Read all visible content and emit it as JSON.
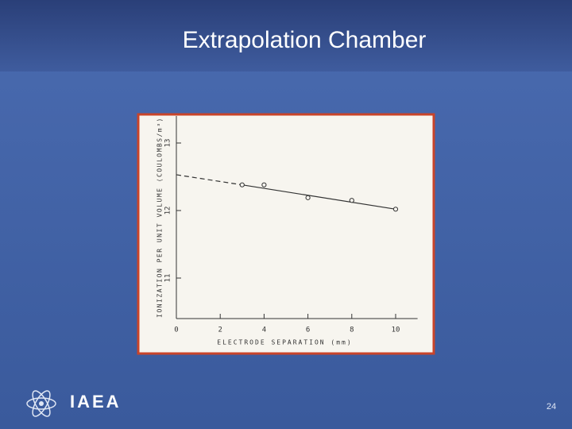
{
  "slide": {
    "title": "Extrapolation Chamber",
    "logo": "IAEA",
    "page": "24"
  },
  "chart_data": {
    "type": "scatter",
    "x_label": "ELECTRODE SEPARATION (mm)",
    "y_label": "IONIZATION PER UNIT VOLUME (COULOMBS/m³)",
    "x": [
      3,
      4,
      6,
      8,
      10
    ],
    "values": [
      12.38,
      12.38,
      12.19,
      12.15,
      12.02
    ],
    "fit_x": [
      0,
      3,
      10
    ],
    "fit_values": [
      12.53,
      12.38,
      12.02
    ],
    "color": "#333333",
    "xlim": [
      0,
      11
    ],
    "ylim": [
      10.4,
      13.4
    ],
    "xticks": [
      0,
      2,
      4,
      6,
      8,
      10
    ],
    "yticks": [
      11,
      12,
      13
    ]
  }
}
